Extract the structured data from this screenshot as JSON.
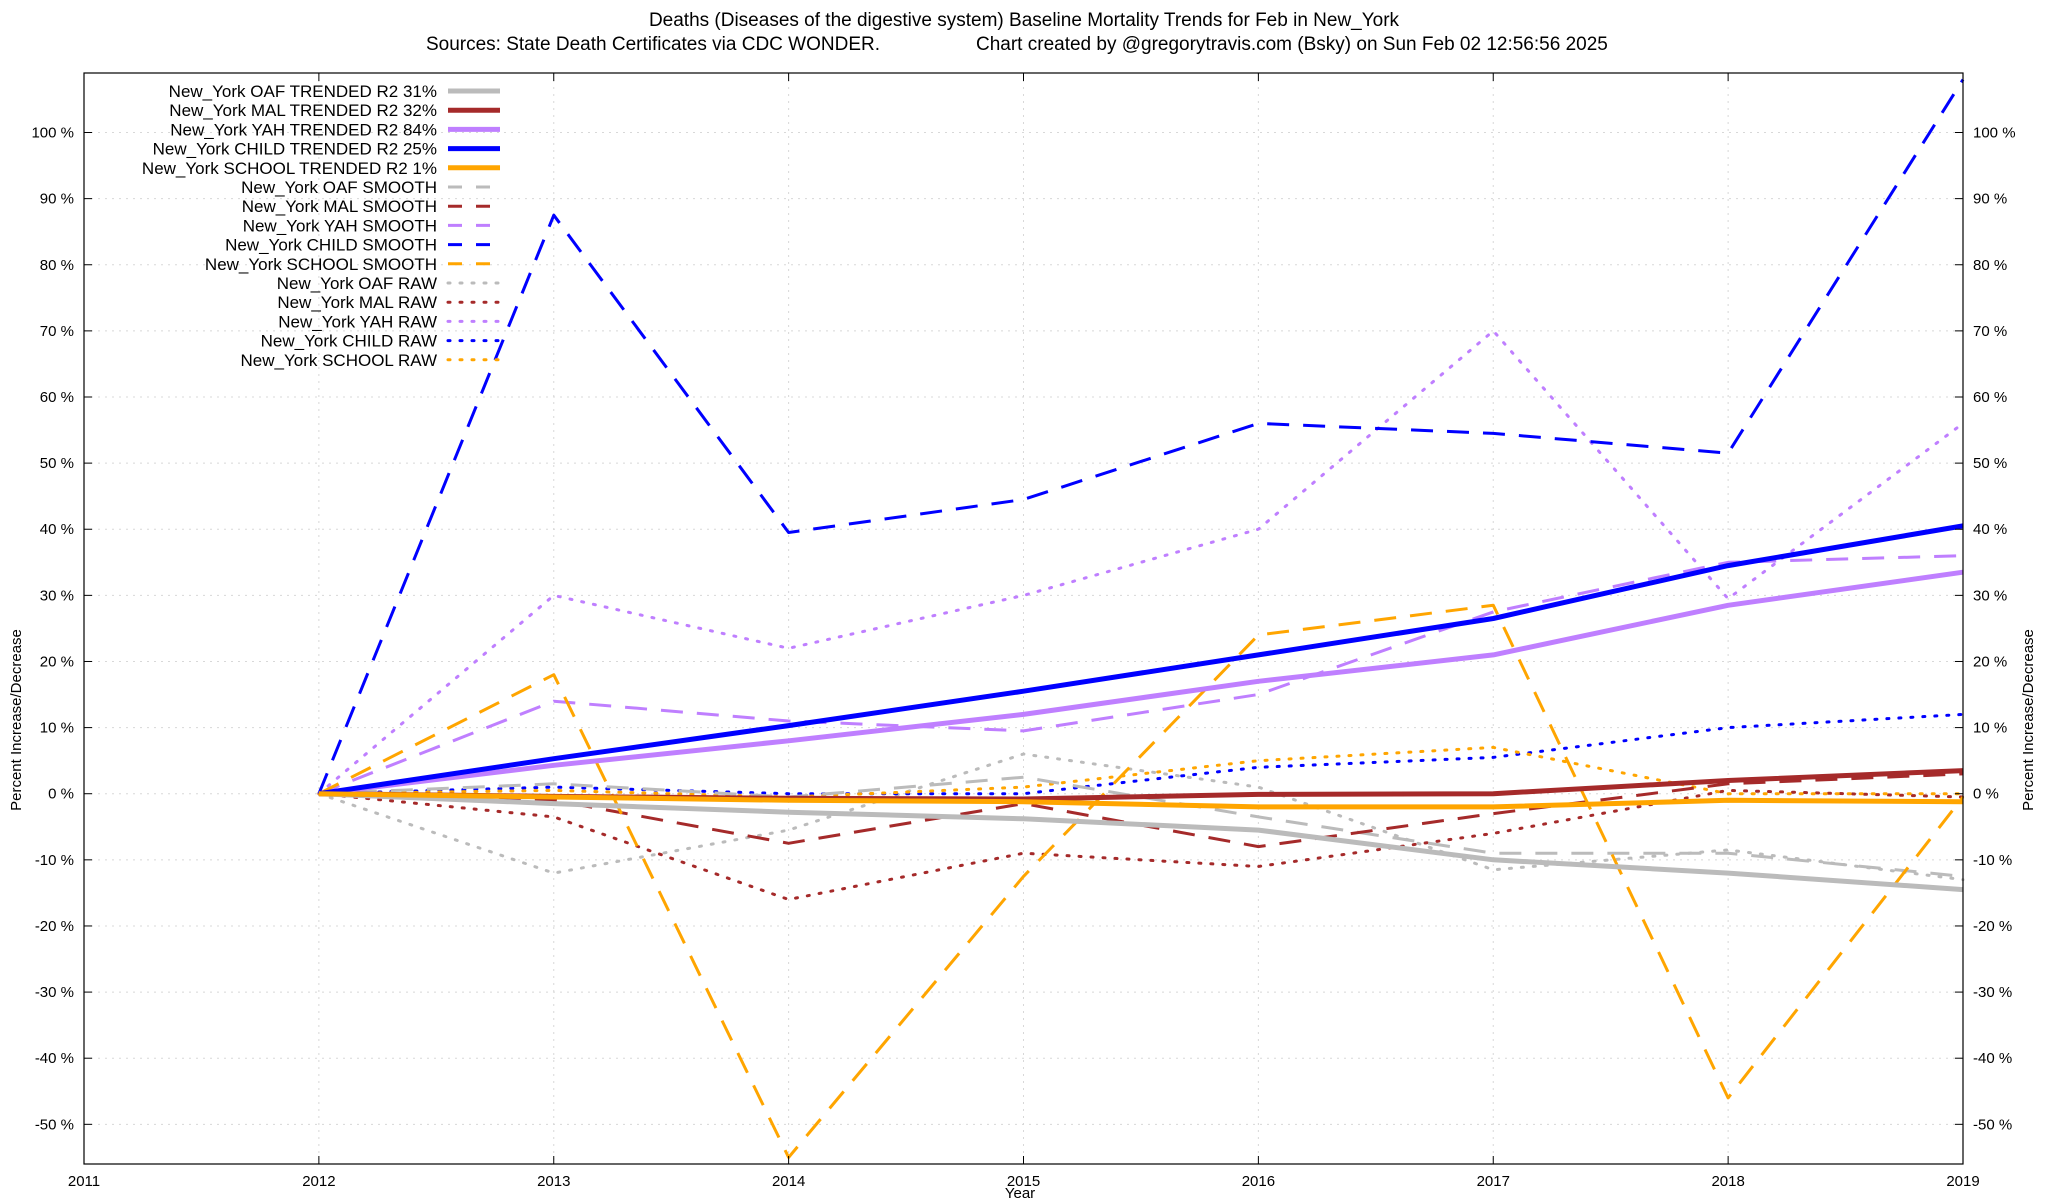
{
  "chart_data": {
    "type": "line",
    "title": "Deaths (Diseases of the digestive system)  Baseline Mortality Trends for Feb in New_York",
    "subtitle_left": "Sources: State Death Certificates via CDC WONDER.",
    "subtitle_right": "Chart created by @gregorytravis.com (Bsky) on Sun Feb 02 12:56:56 2025",
    "xlabel": "Year",
    "ylabel": "Percent Increase/Decrease",
    "y2label": "Percent Increase/Decrease",
    "xlim": [
      2011,
      2019
    ],
    "ylim": [
      -56,
      109
    ],
    "x_ticks": [
      "2011",
      "2012",
      "2013",
      "2014",
      "2015",
      "2016",
      "2017",
      "2018",
      "2019"
    ],
    "y_ticks": [
      "-50 %",
      "-40 %",
      "-30 %",
      "-20 %",
      "-10 %",
      "0 %",
      "10 %",
      "20 %",
      "30 %",
      "40 %",
      "50 %",
      "60 %",
      "70 %",
      "80 %",
      "90 %",
      "100 %"
    ],
    "grid": true,
    "legend_position": "top-left",
    "x": [
      2012,
      2013,
      2014,
      2015,
      2016,
      2017,
      2018,
      2019
    ],
    "series": [
      {
        "name": "New_York OAF TRENDED R2  31%",
        "style": "solid",
        "width": 5,
        "color": "#bbbbbb",
        "values": [
          0,
          -1.5,
          -2.8,
          -3.8,
          -5.5,
          -10,
          -12,
          -14.5
        ]
      },
      {
        "name": "New_York MAL TRENDED R2  32%",
        "style": "solid",
        "width": 5,
        "color": "#a52a2a",
        "values": [
          0,
          -0.4,
          -0.7,
          -0.8,
          -0.1,
          0,
          2,
          3.5
        ]
      },
      {
        "name": "New_York YAH TRENDED R2  84%",
        "style": "solid",
        "width": 5,
        "color": "#bf7fff",
        "values": [
          0,
          4.3,
          8,
          12,
          17,
          21,
          28.5,
          33.5
        ]
      },
      {
        "name": "New_York CHILD TRENDED R2  25%",
        "style": "solid",
        "width": 5,
        "color": "#0000ff",
        "values": [
          0,
          5.3,
          10.3,
          15.5,
          21,
          26.5,
          34.5,
          40.5
        ]
      },
      {
        "name": "New_York SCHOOL TRENDED R2   1%",
        "style": "solid",
        "width": 5,
        "color": "#ffa500",
        "values": [
          0,
          -0.5,
          -1,
          -1.2,
          -2,
          -2,
          -1,
          -1.2
        ]
      },
      {
        "name": "New_York OAF SMOOTH",
        "style": "dash",
        "width": 3,
        "color": "#bbbbbb",
        "values": [
          0,
          1.5,
          -0.5,
          2.5,
          -3.5,
          -9,
          -9,
          -12.5
        ]
      },
      {
        "name": "New_York MAL SMOOTH",
        "style": "dash",
        "width": 3,
        "color": "#a52a2a",
        "values": [
          0,
          -1,
          -7.5,
          -1.5,
          -8,
          -3,
          1.5,
          3
        ]
      },
      {
        "name": "New_York YAH SMOOTH",
        "style": "dash",
        "width": 3,
        "color": "#bf7fff",
        "values": [
          0,
          14,
          11,
          9.5,
          15,
          27.5,
          35,
          36
        ]
      },
      {
        "name": "New_York CHILD SMOOTH",
        "style": "dash",
        "width": 3,
        "color": "#0000ff",
        "values": [
          0,
          87.5,
          39.5,
          44.5,
          56,
          54.5,
          51.5,
          108
        ]
      },
      {
        "name": "New_York SCHOOL SMOOTH",
        "style": "dash",
        "width": 3,
        "color": "#ffa500",
        "values": [
          0,
          18,
          -55,
          -12.5,
          24,
          28.5,
          -46,
          -0.5
        ]
      },
      {
        "name": "New_York OAF RAW",
        "style": "dot",
        "width": 3,
        "color": "#bbbbbb",
        "values": [
          0,
          -12,
          -5.5,
          6,
          1,
          -11.5,
          -8.5,
          -13
        ]
      },
      {
        "name": "New_York MAL RAW",
        "style": "dot",
        "width": 3,
        "color": "#a52a2a",
        "values": [
          0,
          -3.5,
          -16,
          -9,
          -11,
          -6,
          0.5,
          -0.5
        ]
      },
      {
        "name": "New_York YAH RAW",
        "style": "dot",
        "width": 3,
        "color": "#bf7fff",
        "values": [
          0,
          30,
          22,
          30,
          40,
          70,
          29.5,
          56
        ]
      },
      {
        "name": "New_York CHILD RAW",
        "style": "dot",
        "width": 3,
        "color": "#0000ff",
        "values": [
          0,
          1,
          0,
          0,
          4,
          5.5,
          10,
          12
        ]
      },
      {
        "name": "New_York SCHOOL RAW",
        "style": "dot",
        "width": 3,
        "color": "#ffa500",
        "values": [
          0,
          0.5,
          -0.5,
          1,
          5,
          7,
          0,
          0
        ]
      }
    ]
  }
}
